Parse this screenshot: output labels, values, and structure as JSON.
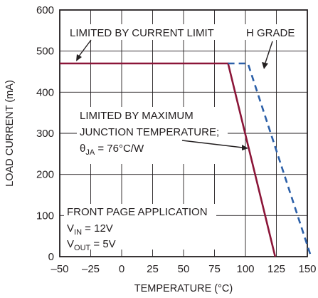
{
  "chart_data": {
    "type": "line",
    "xlabel": "TEMPERATURE (°C)",
    "ylabel": "LOAD CURRENT (mA)",
    "xlim": [
      -50,
      150
    ],
    "ylim": [
      0,
      600
    ],
    "x_ticks": [
      -50,
      -25,
      0,
      25,
      50,
      75,
      100,
      125,
      150
    ],
    "x_tick_labels": [
      "–50",
      "–25",
      "0",
      "25",
      "50",
      "75",
      "100",
      "125",
      "150"
    ],
    "y_ticks": [
      0,
      100,
      200,
      300,
      400,
      500,
      600
    ],
    "y_tick_labels": [
      "0",
      "100",
      "200",
      "300",
      "400",
      "500",
      "600"
    ],
    "grid": true,
    "series": [
      {
        "name": "",
        "style": "solid",
        "color": "#8b1538",
        "x": [
          -50,
          86,
          124
        ],
        "y": [
          470,
          470,
          0
        ]
      },
      {
        "name": "H GRADE",
        "style": "dashed",
        "color": "#2b5fa8",
        "x": [
          86,
          102,
          153
        ],
        "y": [
          470,
          470,
          0
        ]
      }
    ],
    "annotations": {
      "current_limit": "LIMITED BY CURRENT LIMIT",
      "h_grade": "H GRADE",
      "max_junction_line1": "LIMITED BY MAXIMUM",
      "max_junction_line2": "JUNCTION TEMPERATURE;",
      "theta_symbol": "θ",
      "theta_sub": "JA",
      "theta_value": " = 76°C/W",
      "app_title": "FRONT PAGE APPLICATION",
      "vin_main": "V",
      "vin_sub": "IN",
      "vin_value": " = 12V",
      "vout_main": "V",
      "vout_sub": "OUT",
      "vout_value": " = 5V"
    }
  }
}
